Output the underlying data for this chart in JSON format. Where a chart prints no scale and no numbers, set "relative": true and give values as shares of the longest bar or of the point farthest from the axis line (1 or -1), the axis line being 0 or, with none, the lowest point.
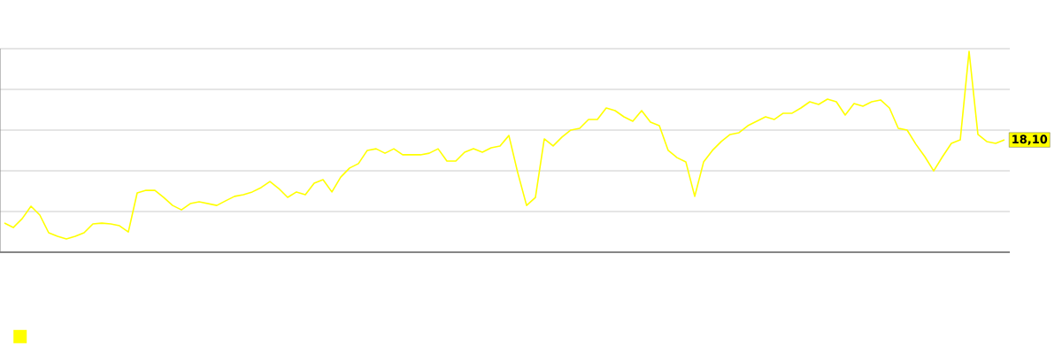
{
  "chart_data": {
    "type": "line",
    "relative": true,
    "grid": "y",
    "marker": "none",
    "annotations": [
      "18,10"
    ],
    "categories": [
      null,
      null,
      null,
      null,
      null,
      null,
      null,
      null,
      null,
      null,
      null,
      null,
      null,
      null,
      null,
      null,
      null,
      null,
      null,
      null,
      null,
      null,
      null,
      null,
      null,
      null,
      null,
      null,
      null,
      null,
      null,
      null,
      null,
      null,
      null,
      null,
      null,
      null,
      null,
      null,
      null,
      null,
      null,
      null,
      null,
      null,
      null,
      null,
      null,
      null,
      null,
      null,
      null,
      null,
      null,
      null,
      null,
      null,
      null,
      null,
      null,
      null,
      null,
      null,
      null,
      null,
      null,
      null,
      null,
      null,
      null,
      null,
      null,
      null,
      null,
      null,
      null,
      null,
      null,
      null,
      null,
      null,
      null,
      null,
      null,
      null,
      null,
      null,
      null,
      null,
      null,
      null,
      null,
      null,
      null,
      null,
      null,
      null,
      null,
      null,
      null,
      null,
      null,
      null,
      null,
      null,
      null,
      null,
      null,
      null,
      null,
      null,
      null,
      null
    ],
    "series": [
      {
        "color": "#ffff00",
        "values": [
          0.145,
          0.123,
          0.167,
          0.229,
          0.185,
          0.097,
          0.079,
          0.066,
          0.079,
          0.097,
          0.141,
          0.145,
          0.141,
          0.132,
          0.101,
          0.295,
          0.308,
          0.308,
          0.273,
          0.233,
          0.211,
          0.242,
          0.251,
          0.242,
          0.233,
          0.256,
          0.278,
          0.286,
          0.3,
          0.322,
          0.352,
          0.317,
          0.273,
          0.3,
          0.286,
          0.344,
          0.361,
          0.3,
          0.374,
          0.419,
          0.441,
          0.507,
          0.515,
          0.493,
          0.515,
          0.485,
          0.485,
          0.485,
          0.493,
          0.515,
          0.454,
          0.454,
          0.498,
          0.515,
          0.498,
          0.52,
          0.529,
          0.581,
          0.396,
          0.233,
          0.273,
          0.564,
          0.529,
          0.573,
          0.608,
          0.617,
          0.661,
          0.661,
          0.718,
          0.705,
          0.674,
          0.652,
          0.705,
          0.648,
          0.63,
          0.507,
          0.471,
          0.449,
          0.278,
          0.449,
          0.507,
          0.551,
          0.586,
          0.595,
          0.63,
          0.652,
          0.674,
          0.661,
          0.692,
          0.692,
          0.718,
          0.749,
          0.736,
          0.762,
          0.749,
          0.683,
          0.74,
          0.727,
          0.749,
          0.758,
          0.718,
          0.617,
          0.608,
          0.537,
          0.476,
          0.405,
          0.476,
          0.542,
          0.559,
          1,
          0.586,
          0.551,
          0.542,
          0.559
        ]
      }
    ]
  }
}
